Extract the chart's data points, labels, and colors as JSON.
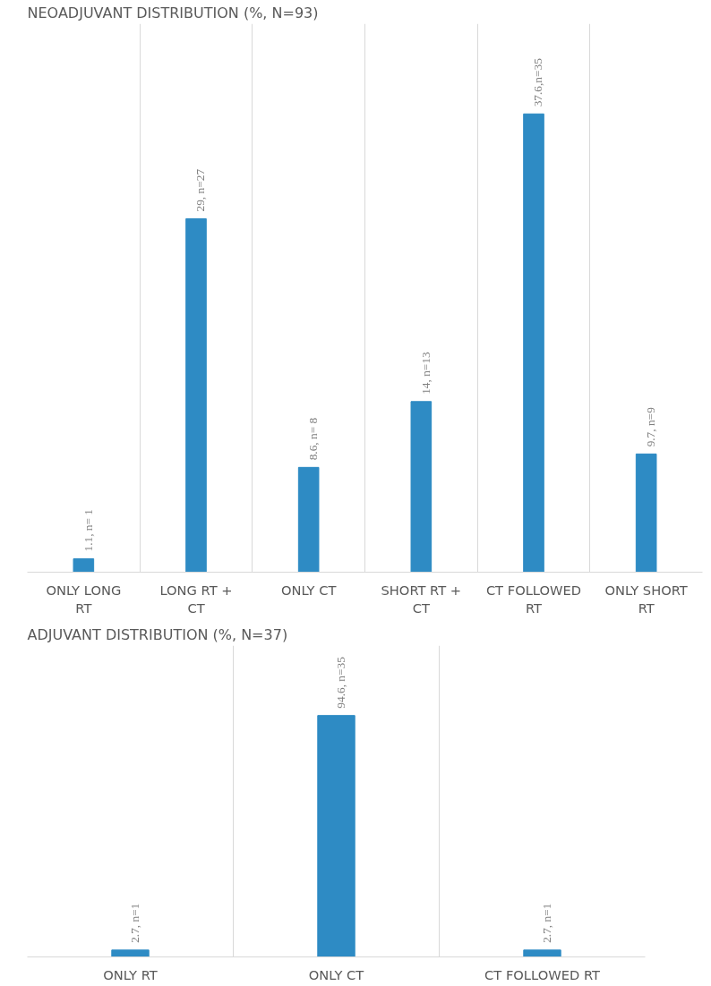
{
  "chart_data": [
    {
      "type": "bar",
      "title": "NEOADJUVANT DISTRIBUTION (%, N=93)",
      "categories": [
        "ONLY LONG RT",
        "LONG RT + CT",
        "ONLY CT",
        "SHORT RT + CT",
        "CT FOLLOWED RT",
        "ONLY SHORT RT"
      ],
      "values": [
        1.1,
        29,
        8.6,
        14,
        37.6,
        9.7
      ],
      "value_labels": [
        "1.1, n= 1",
        "29, n=27",
        "8.6, n= 8",
        "14, n=13",
        "37.6,n=35",
        "9.7, n=9"
      ],
      "color": "#2e8bc4",
      "ylim": [
        0,
        45
      ],
      "grid": "x",
      "tick_labels": "x"
    },
    {
      "type": "bar",
      "title": "ADJUVANT DISTRIBUTION (%, N=37)",
      "categories": [
        "ONLY RT",
        "ONLY CT",
        "CT FOLLOWED RT"
      ],
      "values": [
        2.7,
        94.6,
        2.7
      ],
      "value_labels": [
        "2.7, n=1",
        "94.6, n=35",
        "2.7, n=1"
      ],
      "color": "#2e8bc4",
      "ylim": [
        0,
        122
      ],
      "grid": "x",
      "tick_labels": "x"
    }
  ]
}
